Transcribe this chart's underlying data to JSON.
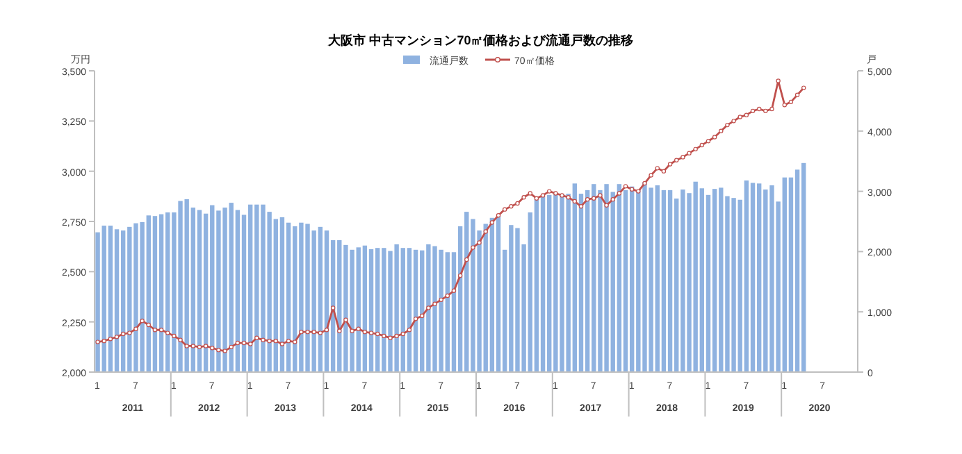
{
  "chart_data": {
    "type": "bar",
    "title": "大阪市  中古マンション70㎡価格および流通戸数の推移",
    "ylabel": "万円",
    "y2label": "戸",
    "categories": [
      "1",
      null,
      null,
      null,
      null,
      null,
      "7",
      null,
      null,
      null,
      null,
      null,
      "1",
      null,
      null,
      null,
      null,
      null,
      "7",
      null,
      null,
      null,
      null,
      null,
      "1",
      null,
      null,
      null,
      null,
      null,
      "7",
      null,
      null,
      null,
      null,
      null,
      "1",
      null,
      null,
      null,
      null,
      null,
      "7",
      null,
      null,
      null,
      null,
      null,
      "1",
      null,
      null,
      null,
      null,
      null,
      "7",
      null,
      null,
      null,
      null,
      null,
      "1",
      null,
      null,
      null,
      null,
      null,
      "7",
      null,
      null,
      null,
      null,
      null,
      "1",
      null,
      null,
      null,
      null,
      null,
      "7",
      null,
      null,
      null,
      null,
      null,
      "1",
      null,
      null,
      null,
      null,
      null,
      "7",
      null,
      null,
      null,
      null,
      null,
      "1",
      null,
      null,
      null,
      null,
      null,
      "7",
      null,
      null,
      null,
      null,
      null,
      "1",
      null,
      null,
      null,
      null,
      null,
      "7",
      null,
      null,
      null,
      null,
      null
    ],
    "series": [
      {
        "name": "流通戸数",
        "axis": "y2",
        "color": "#8fb2e0",
        "values": [
          2320,
          2430,
          2430,
          2370,
          2350,
          2410,
          2470,
          2490,
          2600,
          2590,
          2620,
          2650,
          2650,
          2840,
          2870,
          2730,
          2690,
          2630,
          2770,
          2680,
          2730,
          2810,
          2690,
          2610,
          2780,
          2780,
          2780,
          2660,
          2540,
          2570,
          2480,
          2420,
          2480,
          2460,
          2350,
          2410,
          2350,
          2190,
          2190,
          2110,
          2030,
          2070,
          2100,
          2040,
          2060,
          2060,
          2010,
          2120,
          2060,
          2060,
          2030,
          2020,
          2120,
          2090,
          2030,
          1990,
          1990,
          2420,
          2660,
          2540,
          2350,
          2460,
          2560,
          2590,
          2030,
          2440,
          2390,
          2120,
          2650,
          2880,
          2920,
          2940,
          2960,
          2960,
          2960,
          3130,
          2960,
          3020,
          3120,
          3020,
          3120,
          2990,
          3120,
          3020,
          3080,
          3020,
          3150,
          3060,
          3100,
          3020,
          3020,
          2880,
          3030,
          2970,
          3160,
          3050,
          2940,
          3040,
          3060,
          2920,
          2890,
          2860,
          3180,
          3140,
          3130,
          3030,
          3100,
          2830,
          3230,
          3230,
          3360,
          3470,
          null,
          null,
          null,
          null,
          null,
          null,
          null,
          null
        ]
      },
      {
        "name": "70㎡価格",
        "type": "line",
        "color": "#c0504d",
        "values": [
          2150,
          2155,
          2165,
          2175,
          2190,
          2195,
          2215,
          2255,
          2235,
          2210,
          2210,
          2195,
          2180,
          2160,
          2130,
          2130,
          2125,
          2130,
          2120,
          2110,
          2105,
          2125,
          2145,
          2145,
          2140,
          2170,
          2160,
          2155,
          2155,
          2140,
          2155,
          2150,
          2200,
          2200,
          2200,
          2195,
          2210,
          2320,
          2205,
          2260,
          2205,
          2215,
          2200,
          2195,
          2190,
          2180,
          2170,
          2180,
          2190,
          2210,
          2265,
          2280,
          2320,
          2340,
          2360,
          2380,
          2405,
          2480,
          2560,
          2620,
          2645,
          2700,
          2745,
          2780,
          2810,
          2825,
          2840,
          2870,
          2890,
          2865,
          2880,
          2900,
          2890,
          2880,
          2870,
          2850,
          2825,
          2860,
          2865,
          2880,
          2830,
          2860,
          2890,
          2925,
          2910,
          2900,
          2940,
          2980,
          3015,
          3000,
          3035,
          3055,
          3070,
          3090,
          3110,
          3130,
          3150,
          3170,
          3200,
          3230,
          3250,
          3270,
          3280,
          3300,
          3310,
          3300,
          3310,
          3450,
          3330,
          3345,
          3380,
          3415,
          null,
          null,
          null,
          null,
          null,
          null,
          null,
          null
        ]
      }
    ],
    "ylim": [
      2000,
      3500
    ],
    "yticks": [
      {
        "value": 2000,
        "label": "2,000"
      },
      {
        "value": 2250,
        "label": "2,250"
      },
      {
        "value": 2500,
        "label": "2,500"
      },
      {
        "value": 2750,
        "label": "2,750"
      },
      {
        "value": 3000,
        "label": "3,000"
      },
      {
        "value": 3250,
        "label": "3,250"
      },
      {
        "value": 3500,
        "label": "3,500"
      }
    ],
    "y2lim": [
      0,
      5000
    ],
    "y2ticks": [
      0,
      {
        "value": 1000,
        "label": "1,000"
      },
      {
        "value": 2000,
        "label": "2,000"
      },
      {
        "value": 3000,
        "label": "3,000"
      },
      {
        "value": 4000,
        "label": "4,000"
      },
      {
        "value": 5000,
        "label": "5,000"
      }
    ],
    "marker": "circle",
    "legend": "top",
    "annotations": [
      "2011",
      "2012",
      "2013",
      "2014",
      "2015",
      "2016",
      "2017",
      "2018",
      "2019",
      "2020"
    ]
  }
}
